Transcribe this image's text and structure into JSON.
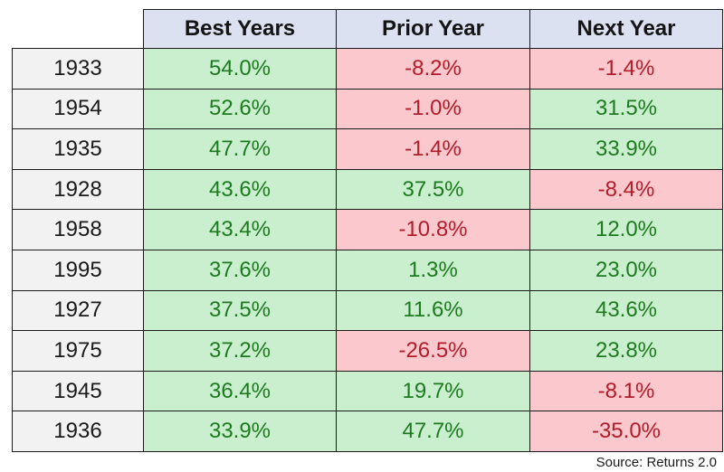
{
  "table": {
    "headers": [
      "Best Years",
      "Prior Year",
      "Next Year"
    ],
    "rows": [
      {
        "year": "1933",
        "best": "54.0%",
        "prior": "-8.2%",
        "next": "-1.4%"
      },
      {
        "year": "1954",
        "best": "52.6%",
        "prior": "-1.0%",
        "next": "31.5%"
      },
      {
        "year": "1935",
        "best": "47.7%",
        "prior": "-1.4%",
        "next": "33.9%"
      },
      {
        "year": "1928",
        "best": "43.6%",
        "prior": "37.5%",
        "next": "-8.4%"
      },
      {
        "year": "1958",
        "best": "43.4%",
        "prior": "-10.8%",
        "next": "12.0%"
      },
      {
        "year": "1995",
        "best": "37.6%",
        "prior": "1.3%",
        "next": "23.0%"
      },
      {
        "year": "1927",
        "best": "37.5%",
        "prior": "11.6%",
        "next": "43.6%"
      },
      {
        "year": "1975",
        "best": "37.2%",
        "prior": "-26.5%",
        "next": "23.8%"
      },
      {
        "year": "1945",
        "best": "36.4%",
        "prior": "19.7%",
        "next": "-8.1%"
      },
      {
        "year": "1936",
        "best": "33.9%",
        "prior": "47.7%",
        "next": "-35.0%"
      }
    ]
  },
  "source": "Source: Returns 2.0",
  "colors": {
    "header_bg": "#dce1f2",
    "positive_bg": "#c9efcf",
    "positive_text": "#1e7a1e",
    "negative_bg": "#fbc8cd",
    "negative_text": "#b01d2a",
    "year_bg": "#f2f2f2"
  }
}
